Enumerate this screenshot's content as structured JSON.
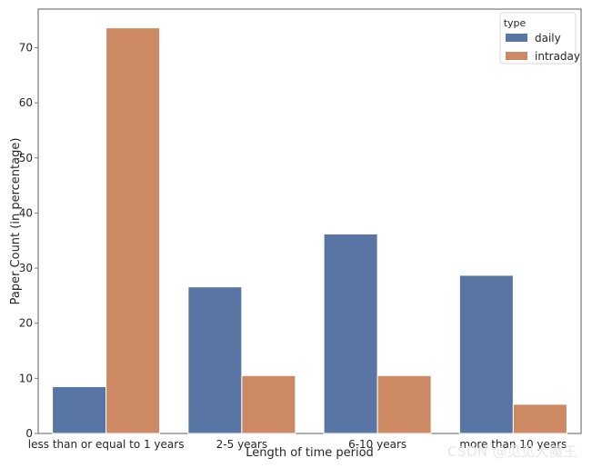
{
  "chart_data": {
    "type": "bar",
    "title": "",
    "xlabel": "Length of time period",
    "ylabel": "Paper Count (in percentage)",
    "categories": [
      "less than or equal to 1 years",
      "2-5 years",
      "6-10 years",
      "more than 10 years"
    ],
    "series": [
      {
        "name": "daily",
        "values": [
          8.5,
          26.6,
          36.2,
          28.7
        ],
        "color": "#5875a4"
      },
      {
        "name": "intraday",
        "values": [
          73.6,
          10.5,
          10.5,
          5.3
        ],
        "color": "#cc8963"
      }
    ],
    "ylim": [
      0,
      77
    ],
    "yticks": [
      0,
      10,
      20,
      30,
      40,
      50,
      60,
      70
    ],
    "grid": false,
    "legend": {
      "title": "type",
      "placement": "top-right"
    }
  },
  "watermark": "CSDN @见见大魔王"
}
